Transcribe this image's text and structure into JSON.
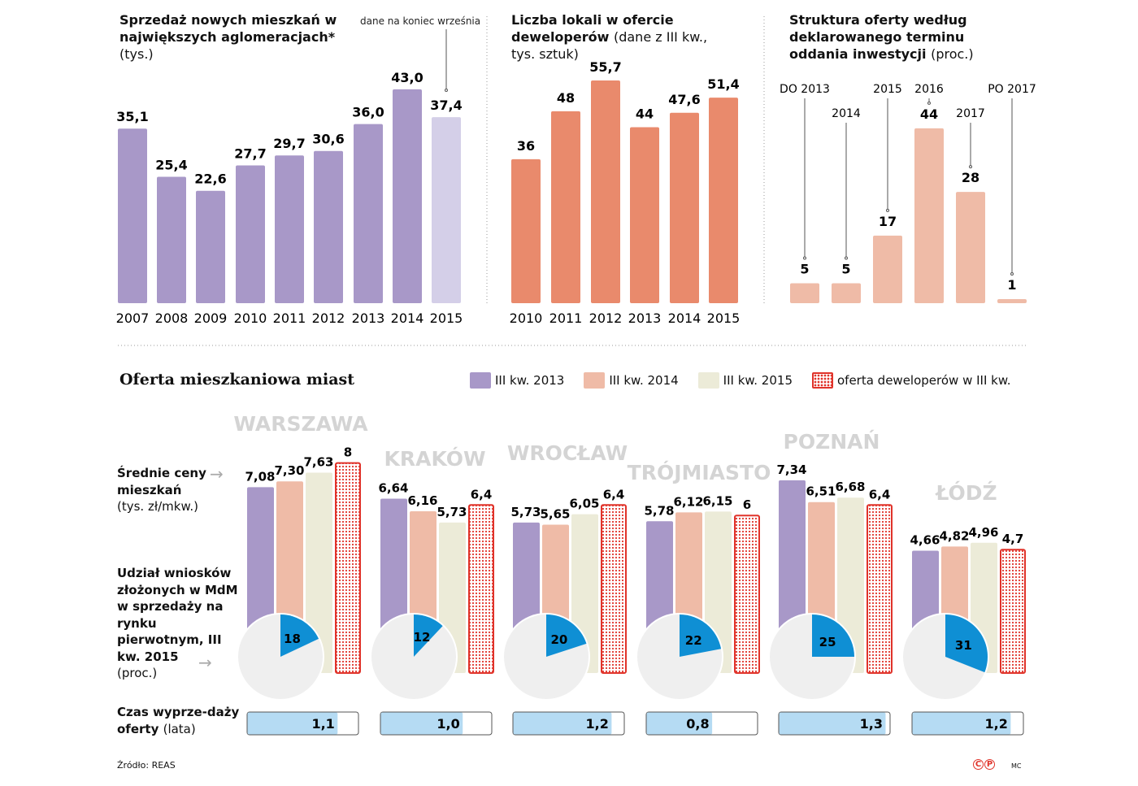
{
  "chart_data": [
    {
      "type": "bar",
      "title": "Sprzedaż nowych mieszkań w największych aglomeracjach*",
      "unit": "(tys.)",
      "annotation": "dane na koniec września",
      "categories": [
        "2007",
        "2008",
        "2009",
        "2010",
        "2011",
        "2012",
        "2013",
        "2014",
        "2015"
      ],
      "values": [
        35.1,
        25.4,
        22.6,
        27.7,
        29.7,
        30.6,
        36.0,
        43.0,
        37.4
      ],
      "labels": [
        "35,1",
        "25,4",
        "22,6",
        "27,7",
        "29,7",
        "30,6",
        "36,0",
        "43,0",
        "37,4"
      ],
      "colors": {
        "bar": "#a898c8",
        "partial": "#d4cfe8"
      }
    },
    {
      "type": "bar",
      "title": "Liczba lokali w ofercie deweloperów",
      "unit": "(dane z III kw., tys. sztuk)",
      "categories": [
        "2010",
        "2011",
        "2012",
        "2013",
        "2014",
        "2015"
      ],
      "values": [
        36,
        48,
        55.7,
        44,
        47.6,
        51.4
      ],
      "labels": [
        "36",
        "48",
        "55,7",
        "44",
        "47,6",
        "51,4"
      ],
      "colors": {
        "bar": "#e98a6c"
      }
    },
    {
      "type": "bar",
      "title": "Struktura oferty według deklarowanego terminu oddania inwestycji",
      "unit": "(proc.)",
      "categories": [
        "DO 2013",
        "2014",
        "2015",
        "2016",
        "2017",
        "PO 2017"
      ],
      "values": [
        5,
        5,
        17,
        44,
        28,
        1
      ],
      "labels": [
        "5",
        "5",
        "17",
        "44",
        "28",
        "1"
      ],
      "colors": {
        "bar": "#efbba7"
      }
    },
    {
      "type": "bar",
      "title": "Oferta mieszkaniowa miast",
      "legend": [
        "III kw. 2013",
        "III kw. 2014",
        "III kw. 2015",
        "oferta deweloperów w III kw."
      ],
      "colors": {
        "s2013": "#a898c8",
        "s2014": "#efbba7",
        "s2015": "#ecebd8",
        "offer": "#e0332a",
        "pie": "#0f8fd4",
        "pie_bg": "#efefef",
        "time": "#b5dbf3"
      },
      "row_labels": {
        "prices": {
          "bold": "Średnie ceny mieszkań",
          "normal": "(tys.  zł/mkw.)"
        },
        "mdm": {
          "bold": "Udział wniosków złożonych w MdM w sprzedaży na rynku pierwotnym, III kw. 2015",
          "normal": "(proc.)"
        },
        "time": {
          "bold": "Czas wyprze-daży oferty",
          "normal": "(lata)"
        }
      },
      "cities": [
        {
          "name": "WARSZAWA",
          "prices": [
            7.08,
            7.3,
            7.63,
            8
          ],
          "price_labels": [
            "7,08",
            "7,30",
            "7,63",
            "8"
          ],
          "mdm": 18,
          "time": 1.1,
          "time_label": "1,1"
        },
        {
          "name": "KRAKÓW",
          "prices": [
            6.64,
            6.16,
            5.73,
            6.4
          ],
          "price_labels": [
            "6,64",
            "6,16",
            "5,73",
            "6,4"
          ],
          "mdm": 12,
          "time": 1.0,
          "time_label": "1,0"
        },
        {
          "name": "WROCŁAW",
          "prices": [
            5.73,
            5.65,
            6.05,
            6.4
          ],
          "price_labels": [
            "5,73",
            "5,65",
            "6,05",
            "6,4"
          ],
          "mdm": 20,
          "time": 1.2,
          "time_label": "1,2"
        },
        {
          "name": "TRÓJMIASTO",
          "prices": [
            5.78,
            6.12,
            6.15,
            6
          ],
          "price_labels": [
            "5,78",
            "6,12",
            "6,15",
            "6"
          ],
          "mdm": 22,
          "time": 0.8,
          "time_label": "0,8"
        },
        {
          "name": "POZNAŃ",
          "prices": [
            7.34,
            6.51,
            6.68,
            6.4
          ],
          "price_labels": [
            "7,34",
            "6,51",
            "6,68",
            "6,4"
          ],
          "mdm": 25,
          "time": 1.3,
          "time_label": "1,3"
        },
        {
          "name": "ŁÓDŹ",
          "prices": [
            4.66,
            4.82,
            4.96,
            4.7
          ],
          "price_labels": [
            "4,66",
            "4,82",
            "4,96",
            "4,7"
          ],
          "mdm": 31,
          "time": 1.2,
          "time_label": "1,2"
        }
      ]
    }
  ],
  "titles": {
    "c1_bold": "Sprzedaż nowych mieszkań w największych aglomeracjach*",
    "c1_normal": "(tys.)",
    "c1_note": "dane na koniec września",
    "c2_bold": "Liczba lokali w ofercie deweloperów",
    "c2_normal": "(dane z III kw., tys. sztuk)",
    "c3_bold": "Struktura oferty według deklarowanego terminu oddania inwestycji",
    "c3_normal": "(proc.)",
    "c4": "Oferta mieszkaniowa miast"
  },
  "footer": {
    "source": "Źródło: REAS",
    "logo": "CP",
    "author": "MC"
  }
}
